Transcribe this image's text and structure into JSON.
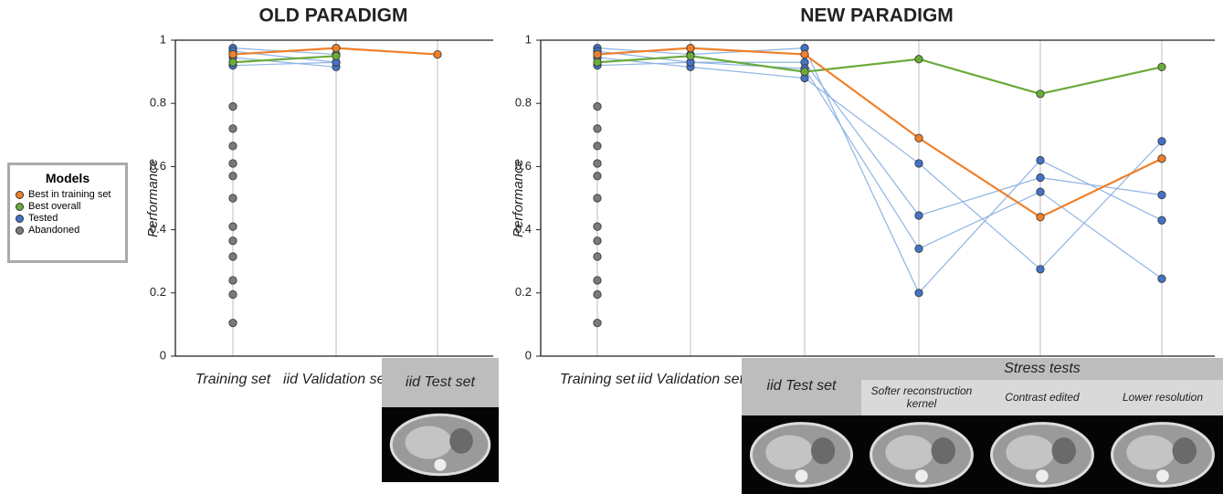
{
  "legend": {
    "title": "Models",
    "entries": [
      {
        "name": "Best in training set",
        "color": "#f07f2a"
      },
      {
        "name": "Best overall",
        "color": "#6aab3a"
      },
      {
        "name": "Tested",
        "color": "#4472c4"
      },
      {
        "name": "Abandoned",
        "color": "#7a7a7a"
      }
    ]
  },
  "chart_data": [
    {
      "type": "line",
      "title": "OLD PARADIGM",
      "y_label": "Performance",
      "categories": [
        "Training set",
        "iid Validation set",
        "iid Test set"
      ],
      "ylim": [
        0,
        1
      ],
      "yticks": [
        0,
        0.2,
        0.4,
        0.6,
        0.8,
        1
      ],
      "grid": true,
      "series": [
        {
          "color": "#4472c4",
          "line_color": "#8fb4e3",
          "values": [
            0.975,
            0.955,
            null
          ]
        },
        {
          "color": "#4472c4",
          "line_color": "#8fb4e3",
          "values": [
            0.965,
            0.93,
            null
          ]
        },
        {
          "color": "#4472c4",
          "line_color": "#8fb4e3",
          "values": [
            0.945,
            0.915,
            null
          ]
        },
        {
          "color": "#4472c4",
          "line_color": "#8fb4e3",
          "values": [
            0.92,
            0.93,
            null
          ]
        },
        {
          "color": "#7a7a7a",
          "values": [
            0.79,
            null,
            null
          ]
        },
        {
          "color": "#7a7a7a",
          "values": [
            0.72,
            null,
            null
          ]
        },
        {
          "color": "#7a7a7a",
          "values": [
            0.665,
            null,
            null
          ]
        },
        {
          "color": "#7a7a7a",
          "values": [
            0.61,
            null,
            null
          ]
        },
        {
          "color": "#7a7a7a",
          "values": [
            0.57,
            null,
            null
          ]
        },
        {
          "color": "#7a7a7a",
          "values": [
            0.5,
            null,
            null
          ]
        },
        {
          "color": "#7a7a7a",
          "values": [
            0.41,
            null,
            null
          ]
        },
        {
          "color": "#7a7a7a",
          "values": [
            0.365,
            null,
            null
          ]
        },
        {
          "color": "#7a7a7a",
          "values": [
            0.315,
            null,
            null
          ]
        },
        {
          "color": "#7a7a7a",
          "values": [
            0.24,
            null,
            null
          ]
        },
        {
          "color": "#7a7a7a",
          "values": [
            0.195,
            null,
            null
          ]
        },
        {
          "color": "#7a7a7a",
          "values": [
            0.105,
            null,
            null
          ]
        },
        {
          "color": "#6aab3a",
          "values": [
            0.93,
            0.95,
            null
          ]
        },
        {
          "color": "#f07f2a",
          "values": [
            0.955,
            0.975,
            0.955
          ]
        }
      ]
    },
    {
      "type": "line",
      "title": "NEW PARADIGM",
      "y_label": "Performance",
      "group_label": "Stress tests",
      "categories": [
        "Training set",
        "iid Validation set",
        "iid Test set",
        "Softer reconstruction kernel",
        "Contrast edited",
        "Lower resolution"
      ],
      "ylim": [
        0,
        1
      ],
      "yticks": [
        0,
        0.2,
        0.4,
        0.6,
        0.8,
        1
      ],
      "grid": true,
      "series": [
        {
          "color": "#4472c4",
          "line_color": "#8fb4e3",
          "values": [
            0.975,
            0.955,
            0.975,
            0.2,
            0.62,
            0.43
          ]
        },
        {
          "color": "#4472c4",
          "line_color": "#8fb4e3",
          "values": [
            0.965,
            0.93,
            0.93,
            0.445,
            0.565,
            0.51
          ]
        },
        {
          "color": "#4472c4",
          "line_color": "#8fb4e3",
          "values": [
            0.945,
            0.915,
            0.88,
            0.61,
            0.275,
            0.68
          ]
        },
        {
          "color": "#4472c4",
          "line_color": "#8fb4e3",
          "values": [
            0.92,
            0.93,
            0.91,
            0.34,
            0.52,
            0.245
          ]
        },
        {
          "color": "#7a7a7a",
          "values": [
            0.79,
            null,
            null,
            null,
            null,
            null
          ]
        },
        {
          "color": "#7a7a7a",
          "values": [
            0.72,
            null,
            null,
            null,
            null,
            null
          ]
        },
        {
          "color": "#7a7a7a",
          "values": [
            0.665,
            null,
            null,
            null,
            null,
            null
          ]
        },
        {
          "color": "#7a7a7a",
          "values": [
            0.61,
            null,
            null,
            null,
            null,
            null
          ]
        },
        {
          "color": "#7a7a7a",
          "values": [
            0.57,
            null,
            null,
            null,
            null,
            null
          ]
        },
        {
          "color": "#7a7a7a",
          "values": [
            0.5,
            null,
            null,
            null,
            null,
            null
          ]
        },
        {
          "color": "#7a7a7a",
          "values": [
            0.41,
            null,
            null,
            null,
            null,
            null
          ]
        },
        {
          "color": "#7a7a7a",
          "values": [
            0.365,
            null,
            null,
            null,
            null,
            null
          ]
        },
        {
          "color": "#7a7a7a",
          "values": [
            0.315,
            null,
            null,
            null,
            null,
            null
          ]
        },
        {
          "color": "#7a7a7a",
          "values": [
            0.24,
            null,
            null,
            null,
            null,
            null
          ]
        },
        {
          "color": "#7a7a7a",
          "values": [
            0.195,
            null,
            null,
            null,
            null,
            null
          ]
        },
        {
          "color": "#7a7a7a",
          "values": [
            0.105,
            null,
            null,
            null,
            null,
            null
          ]
        },
        {
          "color": "#6aab3a",
          "values": [
            0.93,
            0.95,
            0.9,
            0.94,
            0.83,
            0.915
          ]
        },
        {
          "color": "#f07f2a",
          "values": [
            0.955,
            0.975,
            0.955,
            0.69,
            0.44,
            0.625
          ]
        }
      ]
    }
  ]
}
